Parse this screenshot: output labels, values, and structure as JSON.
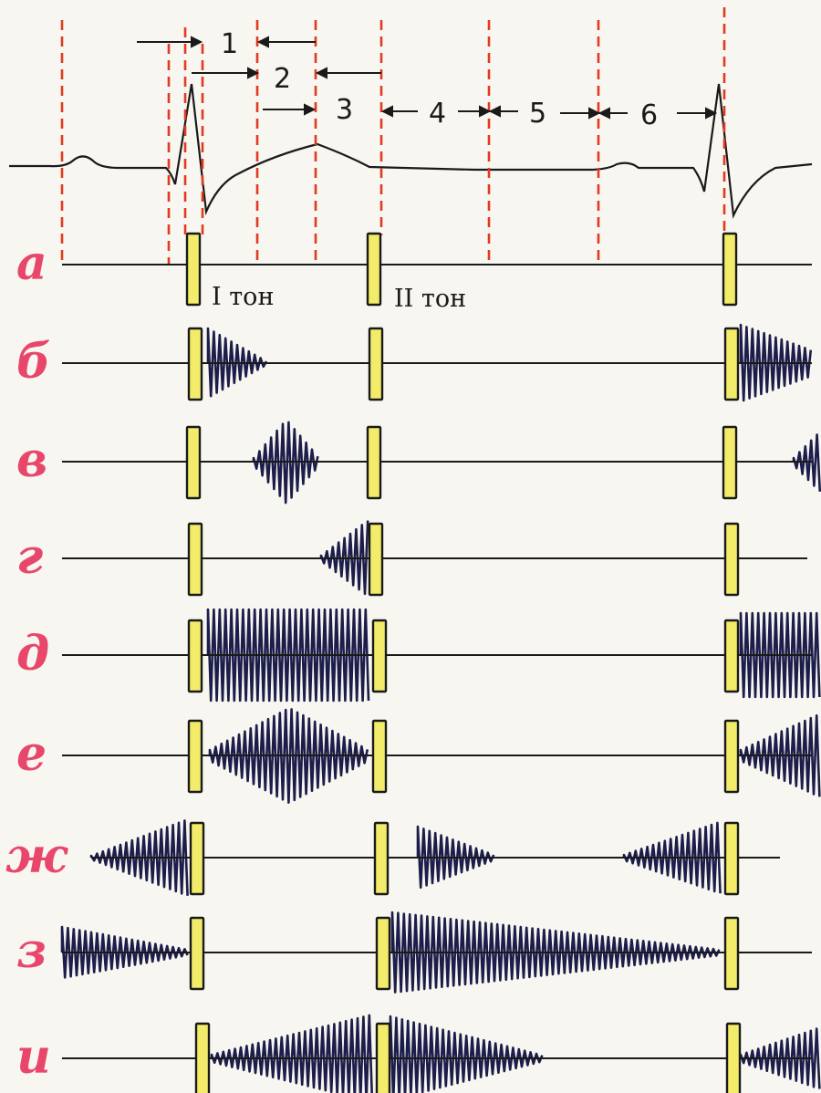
{
  "colors": {
    "background": "#f7f6f0",
    "ecg_line": "#1a1a1a",
    "phase_lines": "#e23a1f",
    "marker_fill": "#f3ec6a",
    "murmur": "#1c1d4a",
    "row_labels": "#e8476b"
  },
  "phases": [
    "1",
    "2",
    "3",
    "4",
    "5",
    "6"
  ],
  "tones": {
    "first": "I тон",
    "second": "II тон"
  },
  "rows": [
    {
      "label": "а",
      "murmur": "none"
    },
    {
      "label": "б",
      "murmur": "early systolic decrescendo"
    },
    {
      "label": "в",
      "murmur": "mid systolic diamond"
    },
    {
      "label": "г",
      "murmur": "late systolic crescendo"
    },
    {
      "label": "д",
      "murmur": "holosystolic plateau"
    },
    {
      "label": "е",
      "murmur": "systolic crescendo-decrescendo"
    },
    {
      "label": "ж",
      "murmur": "presystolic crescendo and early diastolic decrescendo"
    },
    {
      "label": "з",
      "murmur": "diastolic decrescendo"
    },
    {
      "label": "и",
      "murmur": "continuous crescendo-decrescendo"
    }
  ]
}
